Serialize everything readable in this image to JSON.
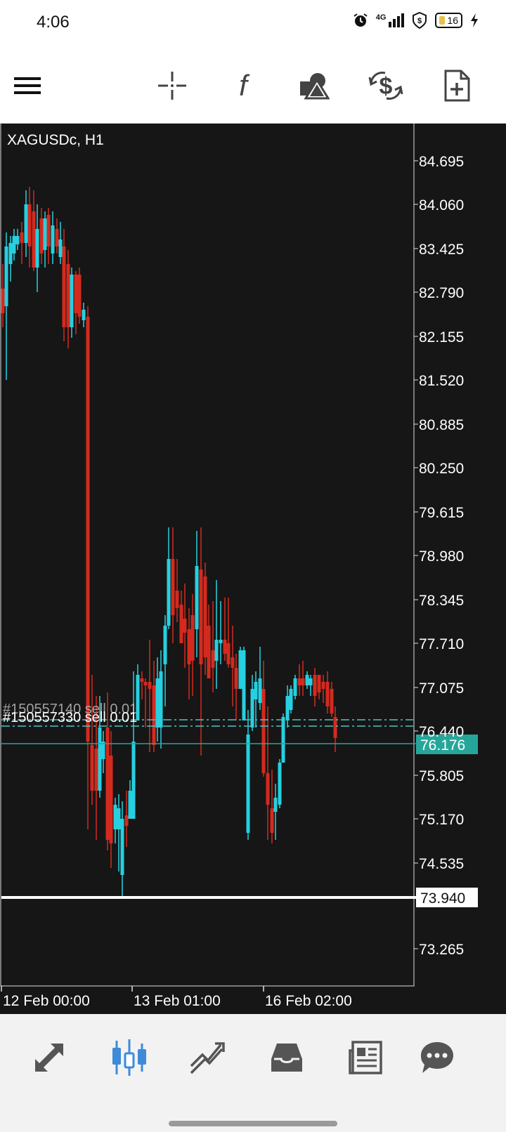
{
  "status": {
    "time": "4:06",
    "network": "4G",
    "battery": "16"
  },
  "toolbar": {
    "icons": [
      "menu-icon",
      "crosshair-icon",
      "indicator-function-icon",
      "objects-shapes-icon",
      "trade-dollar-icon",
      "new-order-icon"
    ]
  },
  "chart": {
    "symbol_label": "XAGUSDc, H1",
    "price_axis": [
      "84.695",
      "84.060",
      "83.425",
      "82.790",
      "82.155",
      "81.520",
      "80.885",
      "80.250",
      "79.615",
      "78.980",
      "78.345",
      "77.710",
      "77.075",
      "76.440",
      "75.805",
      "75.170",
      "74.535",
      "73.265"
    ],
    "current_price": "76.176",
    "crosshair_price": "73.940",
    "time_axis": [
      "12 Feb 00:00",
      "13 Feb 01:00",
      "16 Feb 02:00"
    ],
    "order_label_front": "#150557330 sell 0.01",
    "order_label_back": "#150557140 sell 0.01",
    "colors": {
      "background": "#161616",
      "bull": "#26d0e0",
      "bear": "#d42a1e",
      "current_price_line": "#26a69a",
      "text": "#ffffff"
    }
  },
  "bottom_nav": {
    "icons": [
      "quotes-icon",
      "chart-icon",
      "trade-icon",
      "history-icon",
      "news-icon",
      "chat-icon"
    ],
    "active": "chart-icon"
  }
}
